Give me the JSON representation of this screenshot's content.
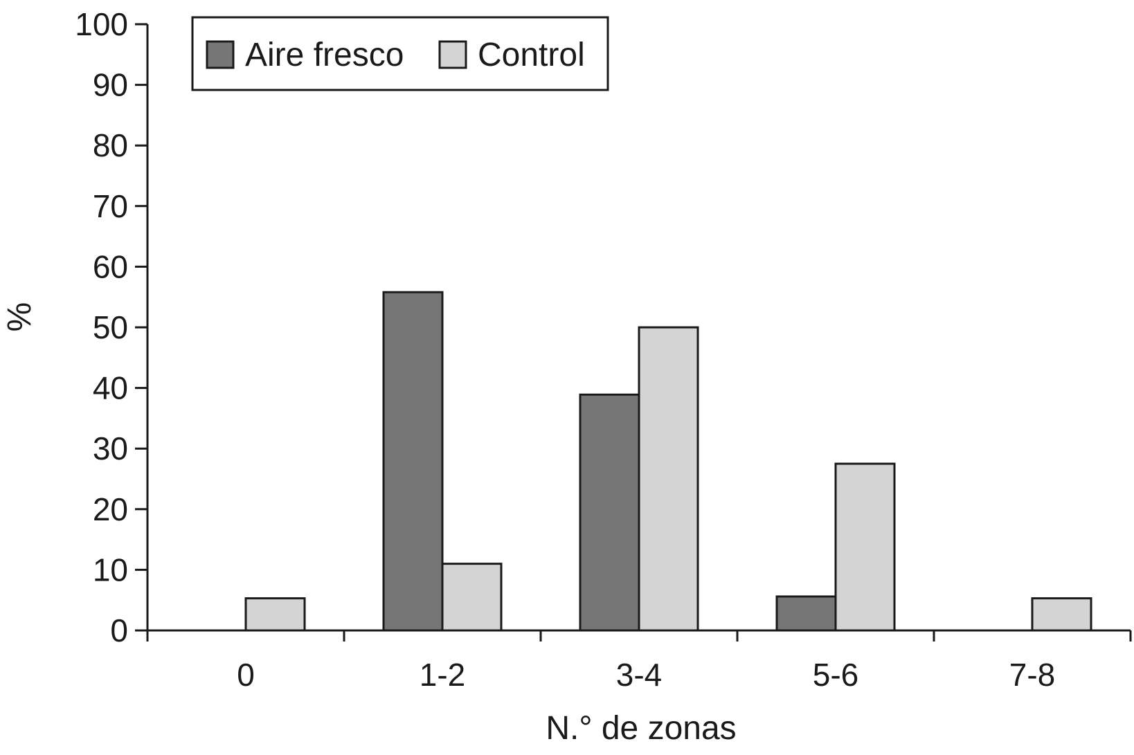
{
  "chart_data": {
    "type": "bar",
    "categories": [
      "0",
      "1-2",
      "3-4",
      "5-6",
      "7-8"
    ],
    "series": [
      {
        "name": "Aire fresco",
        "color": "#767676",
        "values": [
          0,
          55.8,
          38.9,
          5.6,
          0
        ]
      },
      {
        "name": "Control",
        "color": "#d4d4d4",
        "values": [
          5.3,
          11.0,
          50.0,
          27.5,
          5.3
        ]
      }
    ],
    "title": "",
    "xlabel": "N.° de zonas",
    "ylabel": "%",
    "ylim": [
      0,
      100
    ],
    "yticks": [
      0,
      10,
      20,
      30,
      40,
      50,
      60,
      70,
      80,
      90,
      100
    ],
    "grid": false,
    "legend_position": "top-left"
  }
}
